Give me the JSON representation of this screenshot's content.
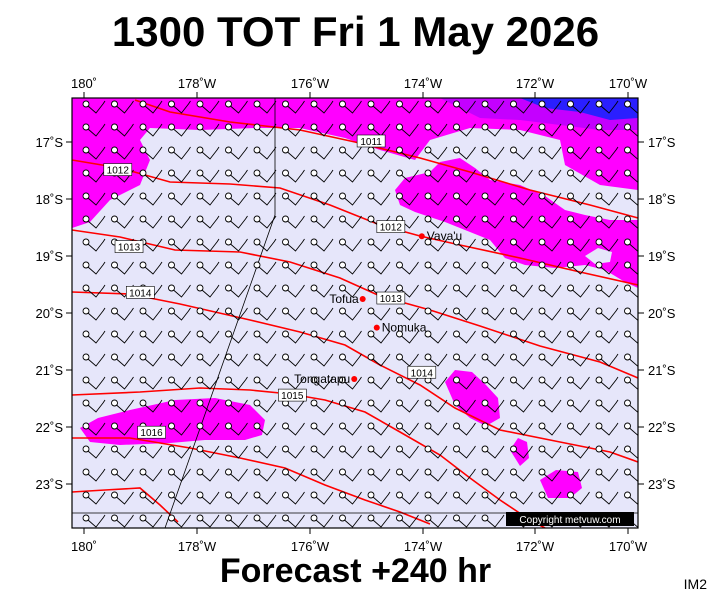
{
  "title": "1300 TOT Fri 1 May 2026",
  "footer": "Forecast +240 hr",
  "tag": "IM2",
  "copyright": "Copyright metvuw.com",
  "colors": {
    "background_field": "#e6e6fa",
    "magenta": "#ff00ff",
    "violet": "#d400ff",
    "blue": "#2020ff",
    "isobar": "#ff0000",
    "place_marker": "#ff0000"
  },
  "axes": {
    "lon_labels": [
      "180˚",
      "178˚W",
      "176˚W",
      "174˚W",
      "172˚W",
      "170˚W"
    ],
    "lat_labels": [
      "17˚S",
      "18˚S",
      "19˚S",
      "20˚S",
      "21˚S",
      "22˚S",
      "23˚S"
    ]
  },
  "places": [
    {
      "name": "Vava'u",
      "lon": -174.0,
      "lat": -18.65
    },
    {
      "name": "Tofua",
      "lon": -175.05,
      "lat": -19.75
    },
    {
      "name": "Nomuka",
      "lon": -174.8,
      "lat": -20.25
    },
    {
      "name": "Tongatapu",
      "lon": -175.2,
      "lat": -21.15
    }
  ],
  "isobar_labels": [
    {
      "text": "1011",
      "lon": -174.9,
      "lat": -17.0
    },
    {
      "text": "1012",
      "lon": -179.4,
      "lat": -17.5
    },
    {
      "text": "1012",
      "lon": -174.55,
      "lat": -18.5
    },
    {
      "text": "1013",
      "lon": -179.2,
      "lat": -18.85
    },
    {
      "text": "1013",
      "lon": -174.55,
      "lat": -19.75
    },
    {
      "text": "1014",
      "lon": -179.0,
      "lat": -19.65
    },
    {
      "text": "1014",
      "lon": -174.0,
      "lat": -21.05
    },
    {
      "text": "1015",
      "lon": -176.3,
      "lat": -21.45
    },
    {
      "text": "1016",
      "lon": -178.8,
      "lat": -22.1
    }
  ]
}
